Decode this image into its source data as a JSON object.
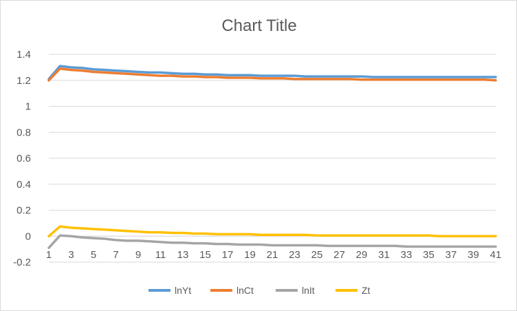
{
  "chart_data": {
    "type": "line",
    "title": "Chart Title",
    "xlabel": "",
    "ylabel": "",
    "x_tick_labels": [
      "1",
      "3",
      "5",
      "7",
      "9",
      "11",
      "13",
      "15",
      "17",
      "19",
      "21",
      "23",
      "25",
      "27",
      "29",
      "31",
      "33",
      "35",
      "37",
      "39",
      "41"
    ],
    "y_tick_labels": [
      "-0.2",
      "0",
      "0.2",
      "0.4",
      "0.6",
      "0.8",
      "1",
      "1.2",
      "1.4"
    ],
    "ylim": [
      -0.2,
      1.4
    ],
    "y_major_unit": 0.2,
    "grid": true,
    "legend_position": "bottom",
    "x": [
      1,
      2,
      3,
      4,
      5,
      6,
      7,
      8,
      9,
      10,
      11,
      12,
      13,
      14,
      15,
      16,
      17,
      18,
      19,
      20,
      21,
      22,
      23,
      24,
      25,
      26,
      27,
      28,
      29,
      30,
      31,
      32,
      33,
      34,
      35,
      36,
      37,
      38,
      39,
      40,
      41
    ],
    "series": [
      {
        "name": "lnYt",
        "color": "#5B9BD5",
        "values": [
          1.21,
          1.31,
          1.3,
          1.295,
          1.285,
          1.28,
          1.275,
          1.27,
          1.265,
          1.26,
          1.26,
          1.255,
          1.25,
          1.25,
          1.245,
          1.245,
          1.24,
          1.24,
          1.24,
          1.235,
          1.235,
          1.235,
          1.235,
          1.23,
          1.23,
          1.23,
          1.23,
          1.23,
          1.23,
          1.225,
          1.225,
          1.225,
          1.225,
          1.225,
          1.225,
          1.225,
          1.225,
          1.225,
          1.225,
          1.225,
          1.225
        ]
      },
      {
        "name": "lnCt",
        "color": "#ED7D31",
        "values": [
          1.2,
          1.29,
          1.28,
          1.275,
          1.265,
          1.26,
          1.255,
          1.25,
          1.245,
          1.24,
          1.235,
          1.235,
          1.23,
          1.23,
          1.225,
          1.225,
          1.22,
          1.22,
          1.22,
          1.215,
          1.215,
          1.215,
          1.21,
          1.21,
          1.21,
          1.21,
          1.21,
          1.21,
          1.205,
          1.205,
          1.205,
          1.205,
          1.205,
          1.205,
          1.205,
          1.205,
          1.205,
          1.205,
          1.205,
          1.205,
          1.2
        ]
      },
      {
        "name": "lnIt",
        "color": "#A5A5A5",
        "values": [
          -0.09,
          0.005,
          0.0,
          -0.01,
          -0.015,
          -0.02,
          -0.03,
          -0.035,
          -0.035,
          -0.04,
          -0.045,
          -0.05,
          -0.05,
          -0.055,
          -0.055,
          -0.06,
          -0.06,
          -0.065,
          -0.065,
          -0.065,
          -0.07,
          -0.07,
          -0.07,
          -0.07,
          -0.07,
          -0.075,
          -0.075,
          -0.075,
          -0.075,
          -0.075,
          -0.075,
          -0.075,
          -0.08,
          -0.08,
          -0.08,
          -0.08,
          -0.08,
          -0.08,
          -0.08,
          -0.08,
          -0.08
        ]
      },
      {
        "name": "Zt",
        "color": "#FFC000",
        "values": [
          0.0,
          0.075,
          0.065,
          0.06,
          0.055,
          0.05,
          0.045,
          0.04,
          0.035,
          0.03,
          0.03,
          0.025,
          0.025,
          0.02,
          0.02,
          0.015,
          0.015,
          0.015,
          0.015,
          0.01,
          0.01,
          0.01,
          0.01,
          0.01,
          0.005,
          0.005,
          0.005,
          0.005,
          0.005,
          0.005,
          0.005,
          0.005,
          0.005,
          0.005,
          0.005,
          0.0,
          0.0,
          0.0,
          0.0,
          0.0,
          0.0
        ]
      }
    ]
  }
}
